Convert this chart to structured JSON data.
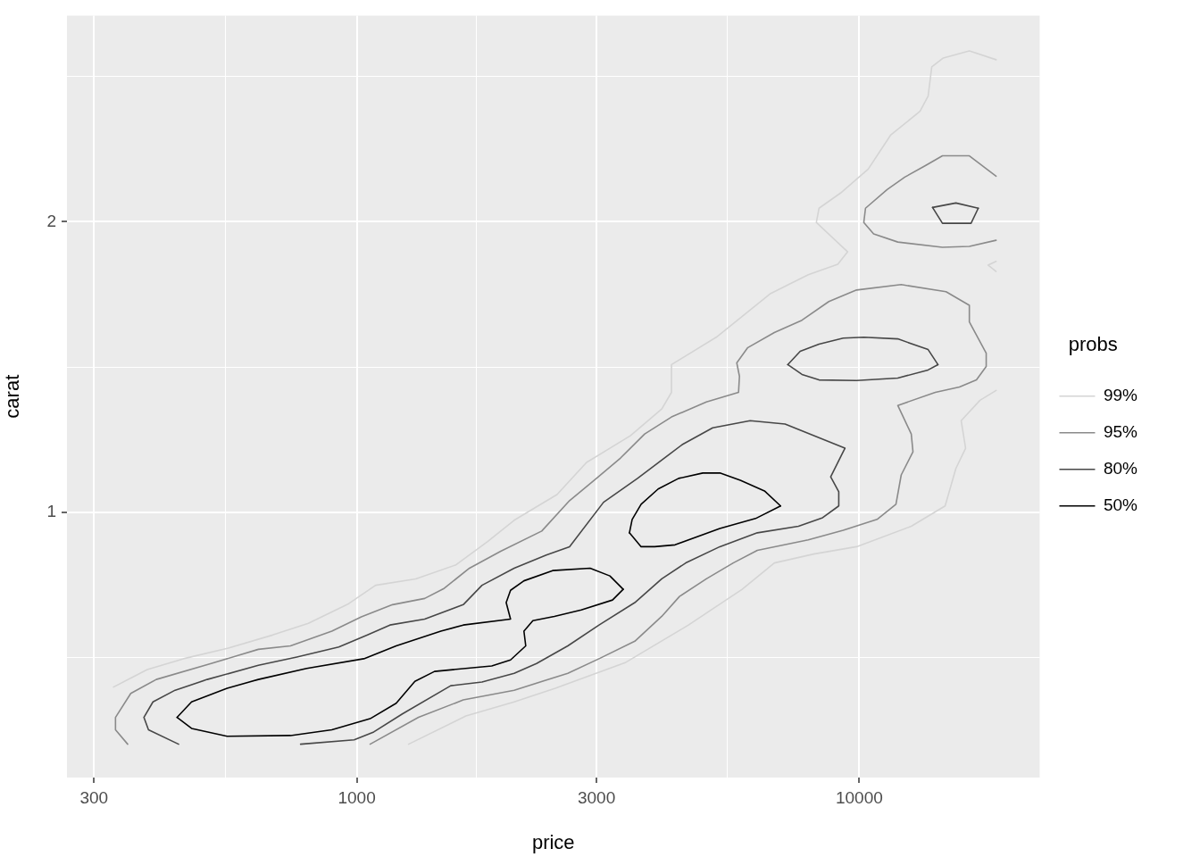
{
  "chart_data": {
    "type": "line",
    "xlabel": "price",
    "ylabel": "carat",
    "legend_title": "probs",
    "log": "xy",
    "grid": true,
    "legend": "right",
    "line_style": "solid",
    "xlim": [
      265,
      22860
    ],
    "xticks": [
      300,
      {
        "value": 548,
        "label": null
      },
      1000,
      {
        "value": 1730,
        "label": null
      },
      3000,
      {
        "value": 5450,
        "label": null
      },
      10000
    ],
    "ylim": [
      0.531,
      3.27
    ],
    "yticks": [
      {
        "value": 0.707,
        "label": null
      },
      1,
      {
        "value": 1.414,
        "label": null
      },
      2,
      {
        "value": 2.83,
        "label": null
      }
    ],
    "series": [
      {
        "name": "99%",
        "color": "#d4d4d4",
        "x": [
          328,
          383,
          452,
          555,
          680,
          801,
          964,
          1090,
          1310,
          1576,
          1819,
          2057,
          2503,
          2866,
          3503,
          4045,
          4230,
          4230,
          5192,
          6665,
          7915,
          9064,
          9482,
          8214,
          8316,
          9176,
          10420,
          11540,
          13210,
          13710,
          13940,
          14700,
          16560,
          18720
        ],
        "values": [
          0.659,
          0.687,
          0.705,
          0.723,
          0.746,
          0.767,
          0.804,
          0.84,
          0.853,
          0.882,
          0.932,
          0.981,
          1.043,
          1.126,
          1.2,
          1.279,
          1.331,
          1.422,
          1.518,
          1.685,
          1.762,
          1.807,
          1.861,
          1.996,
          2.065,
          2.141,
          2.267,
          2.458,
          2.602,
          2.698,
          2.893,
          2.955,
          3.006,
          2.943
        ]
      },
      {
        "color": "#d4d4d4",
        "x": [
          1268,
          1649,
          2057,
          2483,
          3432,
          4572,
          5847,
          6776,
          8116,
          9878,
          12690,
          14820,
          15570,
          16280,
          15950,
          17390,
          18720
        ],
        "values": [
          0.575,
          0.615,
          0.636,
          0.657,
          0.699,
          0.764,
          0.832,
          0.886,
          0.905,
          0.921,
          0.967,
          1.015,
          1.11,
          1.165,
          1.244,
          1.306,
          1.337
        ]
      },
      {
        "color": "#d4d4d4",
        "x": [
          18720,
          18040,
          18720
        ],
        "values": [
          1.819,
          1.803,
          1.776
        ]
      },
      {
        "name": "95%",
        "color": "#8a8a8a",
        "x": [
          350,
          331,
          331,
          355,
          399,
          513,
          637,
          738,
          892,
          1021,
          1178,
          1365,
          1488,
          1676,
          1934,
          2334,
          2651,
          2999,
          3349,
          3741,
          4230,
          4963,
          5751,
          5775,
          5704,
          5992,
          6776,
          7691,
          8700,
          9878,
          12120,
          14880,
          16560,
          16560,
          17890,
          17890,
          17110,
          15830,
          14170,
          11930,
          12690,
          12790,
          12120,
          11830,
          10850,
          9290,
          7915,
          6268,
          5612,
          4963,
          4388,
          4045,
          3575,
          3035,
          2630,
          2057,
          1629,
          1327,
          1063
        ],
        "values": [
          0.575,
          0.595,
          0.613,
          0.649,
          0.671,
          0.697,
          0.721,
          0.727,
          0.753,
          0.779,
          0.802,
          0.814,
          0.833,
          0.875,
          0.911,
          0.956,
          1.028,
          1.084,
          1.138,
          1.205,
          1.255,
          1.301,
          1.331,
          1.383,
          1.428,
          1.48,
          1.535,
          1.581,
          1.653,
          1.699,
          1.721,
          1.692,
          1.638,
          1.574,
          1.461,
          1.416,
          1.371,
          1.348,
          1.331,
          1.29,
          1.205,
          1.155,
          1.093,
          1.019,
          0.983,
          0.958,
          0.936,
          0.913,
          0.886,
          0.853,
          0.818,
          0.78,
          0.735,
          0.705,
          0.681,
          0.654,
          0.639,
          0.613,
          0.575
        ]
      },
      {
        "color": "#8a8a8a",
        "x": [
          18720,
          16560,
          14640,
          13540,
          12320,
          11360,
          10290,
          10210,
          10680,
          11930,
          14640,
          16560,
          18720
        ],
        "values": [
          2.229,
          2.34,
          2.34,
          2.286,
          2.224,
          2.159,
          2.065,
          1.996,
          1.942,
          1.905,
          1.881,
          1.885,
          1.913
        ]
      },
      {
        "name": "80%",
        "color": "#474747",
        "x": [
          442,
          385,
          377,
          393,
          435,
          504,
          637,
          760,
          921,
          1050,
          1164,
          1365,
          1629,
          1775,
          2057,
          2383,
          2651,
          3098,
          3620,
          4443,
          5108,
          6066,
          7117,
          9365,
          8772,
          9103,
          9103,
          8453,
          7568,
          6268,
          5279,
          4516,
          4045,
          3575,
          3035,
          2630,
          2279,
          2057,
          1775,
          1538,
          1232,
          1081,
          988,
          773
        ],
        "values": [
          0.575,
          0.595,
          0.613,
          0.636,
          0.654,
          0.671,
          0.694,
          0.708,
          0.725,
          0.746,
          0.764,
          0.775,
          0.802,
          0.84,
          0.875,
          0.903,
          0.921,
          1.024,
          1.084,
          1.175,
          1.223,
          1.244,
          1.234,
          1.165,
          1.088,
          1.05,
          1.015,
          0.987,
          0.967,
          0.952,
          0.921,
          0.886,
          0.853,
          0.806,
          0.764,
          0.727,
          0.697,
          0.681,
          0.667,
          0.661,
          0.618,
          0.592,
          0.581,
          0.575
        ]
      },
      {
        "color": "#474747",
        "x": [
          7206,
          7629,
          8316,
          9290,
          10210,
          11930,
          13710,
          14340
        ],
        "values": [
          1.422,
          1.468,
          1.493,
          1.515,
          1.518,
          1.512,
          1.474,
          1.422
        ]
      },
      {
        "color": "#474747",
        "x": [
          14340,
          13710,
          11930,
          9878,
          8316,
          7691,
          7206
        ],
        "values": [
          1.422,
          1.404,
          1.377,
          1.369,
          1.371,
          1.389,
          1.422
        ]
      },
      {
        "color": "#474747",
        "x": [
          13990,
          15570,
          17250
        ],
        "values": [
          2.069,
          2.091,
          2.065
        ]
      },
      {
        "color": "#474747",
        "x": [
          17250,
          16690,
          14640,
          13990
        ],
        "values": [
          2.065,
          1.992,
          1.992,
          2.069
        ]
      },
      {
        "name": "50%",
        "color": "#000000",
        "x": [
          439,
          469,
          552,
          637,
          795,
          1033,
          1198,
          1470,
          1629,
          2023,
          1983,
          2023,
          2151,
          2453,
          2913,
          3189,
          3390
        ],
        "values": [
          0.613,
          0.636,
          0.657,
          0.671,
          0.689,
          0.705,
          0.727,
          0.753,
          0.764,
          0.775,
          0.806,
          0.83,
          0.849,
          0.87,
          0.875,
          0.859,
          0.832
        ]
      },
      {
        "color": "#000000",
        "x": [
          3390,
          3228,
          2797,
          2473,
          2241,
          2151,
          2169,
          2023,
          1856,
          1428,
          1305,
          1198,
          1063,
          892,
          738,
          552,
          469,
          439
        ],
        "values": [
          0.832,
          0.811,
          0.792,
          0.78,
          0.772,
          0.753,
          0.727,
          0.703,
          0.693,
          0.684,
          0.668,
          0.634,
          0.611,
          0.595,
          0.587,
          0.586,
          0.597,
          0.613
        ]
      },
      {
        "color": "#000000",
        "x": [
          3488,
          3532,
          3680,
          3979,
          4370,
          4882,
          5279,
          5799,
          6477,
          6972
        ],
        "values": [
          0.952,
          0.983,
          1.019,
          1.057,
          1.084,
          1.098,
          1.098,
          1.079,
          1.052,
          1.015
        ]
      },
      {
        "color": "#000000",
        "x": [
          6972,
          6217,
          5279,
          4299,
          3914,
          3680,
          3488
        ],
        "values": [
          1.015,
          0.985,
          0.962,
          0.925,
          0.921,
          0.921,
          0.952
        ]
      }
    ]
  }
}
